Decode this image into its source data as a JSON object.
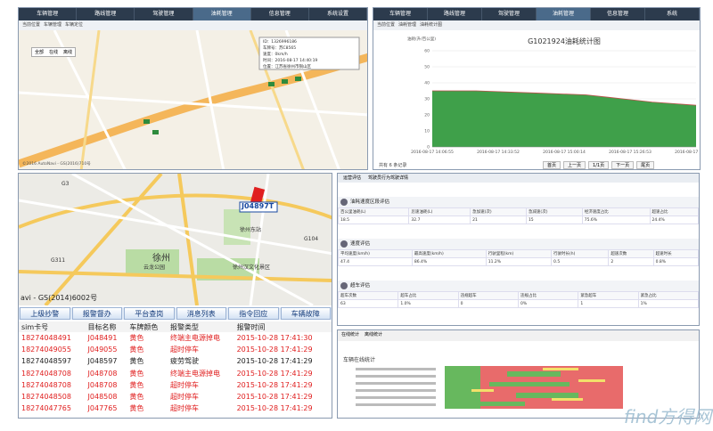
{
  "top_left": {
    "nav": [
      "车辆管理",
      "路线管理",
      "驾驶管理",
      "油耗管理",
      "信息管理",
      "系统设置"
    ],
    "breadcrumb": [
      "当前位置",
      "车辆管理",
      "车辆定位"
    ],
    "popup": [
      "ID：1326996186",
      "车牌号：苏C8565",
      "速度：0km/h",
      "时间：2016-08-17 14:40:19",
      "位置：江苏省徐州市铜山区"
    ],
    "filters": [
      "全部",
      "在线",
      "离线"
    ],
    "footer": "©2016 AutoNavi - GS(2016)710号"
  },
  "chart_panel": {
    "nav": [
      "车辆管理",
      "路线管理",
      "驾驶管理",
      "油耗管理",
      "信息管理",
      "系统"
    ],
    "breadcrumb": [
      "当前位置",
      "油耗管理",
      "油耗统计图"
    ],
    "records": "共有 6 条记录",
    "pager": [
      "首页",
      "上一页",
      "1/1页",
      "下一页",
      "尾页"
    ]
  },
  "chart_data": {
    "type": "area",
    "title": "G1021924油耗统计图",
    "y_label": "油耗(升/百公里)",
    "categories": [
      "2016-08-17 14:06:55",
      null,
      null,
      "2016-08-17 14:33:52",
      null,
      null,
      "2016-08-17 15:00:14",
      null,
      null,
      "2016-08-17 15:26:53",
      null,
      null,
      "2016-08-17 15:53:40"
    ],
    "values": [
      35,
      35,
      35,
      34.5,
      34,
      33.5,
      33,
      32.5,
      31,
      29.5,
      28,
      27,
      26
    ],
    "color": "#3fa04a",
    "line_color": "#c0504d",
    "ylim": [
      0,
      60
    ],
    "yticks": [
      0,
      10,
      20,
      30,
      40,
      50,
      60
    ],
    "grid": true
  },
  "alarm_panel": {
    "map_labels": [
      "徐州",
      "徐州汉文化景区",
      "云龙公园",
      "G3",
      "G311",
      "G104",
      "徐州东站"
    ],
    "vehicle": "J04897T",
    "copyright": "avi - GS(2014)6002号",
    "buttons": [
      "上级抄警",
      "报警督办",
      "平台查岗",
      "消息列表",
      "指令回应",
      "车辆故障"
    ],
    "header": [
      "sim卡号",
      "目标名称",
      "车牌颜色",
      "报警类型",
      "报警时间"
    ],
    "rows": [
      [
        "18274048491",
        "J048491",
        "黄色",
        "终端主电源掉电",
        "2015-10-28 17:41:30"
      ],
      [
        "18274049055",
        "J049055",
        "黄色",
        "超时停车",
        "2015-10-28 17:41:29"
      ],
      [
        "18274048597",
        "J048597",
        "黄色",
        "疲劳驾驶",
        "2015-10-28 17:41:29"
      ],
      [
        "18274048708",
        "J048708",
        "黄色",
        "终端主电源掉电",
        "2015-10-28 17:41:29"
      ],
      [
        "18274048708",
        "J048708",
        "黄色",
        "超时停车",
        "2015-10-28 17:41:29"
      ],
      [
        "18274048508",
        "J048508",
        "黄色",
        "超时停车",
        "2015-10-28 17:41:29"
      ],
      [
        "18274047765",
        "J047765",
        "黄色",
        "超时停车",
        "2015-10-28 17:41:29"
      ]
    ],
    "row_colors": [
      "#e02020",
      "#e02020",
      "#222222",
      "#e02020",
      "#e02020",
      "#e02020",
      "#e02020"
    ]
  },
  "evaluation": {
    "tabs": [
      "运营评估",
      "驾驶员行为驾驶详情"
    ],
    "sections": [
      {
        "title": "油耗速度区段评估",
        "header": [
          "百公里油耗(L)",
          "怠速油耗(L)",
          "急加速(次)",
          "急减速(次)",
          "经济速度占比",
          "超速占比"
        ],
        "row": [
          "18.5",
          "32.7",
          "21",
          "15",
          "75.6%",
          "24.4%"
        ]
      },
      {
        "title": "速度评估",
        "header": [
          "平均速度(km/h)",
          "最高速度(km/h)",
          "行驶里程(km)",
          "行驶时长(h)",
          "超速次数",
          "超速时长"
        ],
        "row": [
          "47.4",
          "86.4%",
          "11.2%",
          "0.5",
          "2",
          "0.8%"
        ]
      },
      {
        "title": "超车评估",
        "header": [
          "超车次数",
          "超车占比",
          "违规超车",
          "违规占比",
          "紧急超车",
          "紧急占比"
        ],
        "row": [
          "63",
          "1.0%",
          "0",
          "0%",
          "1",
          "1%"
        ]
      }
    ]
  },
  "timeline": {
    "title": "车辆在线统计",
    "tabs": [
      "在线统计",
      "离线统计"
    ]
  },
  "watermark": "find方得网"
}
